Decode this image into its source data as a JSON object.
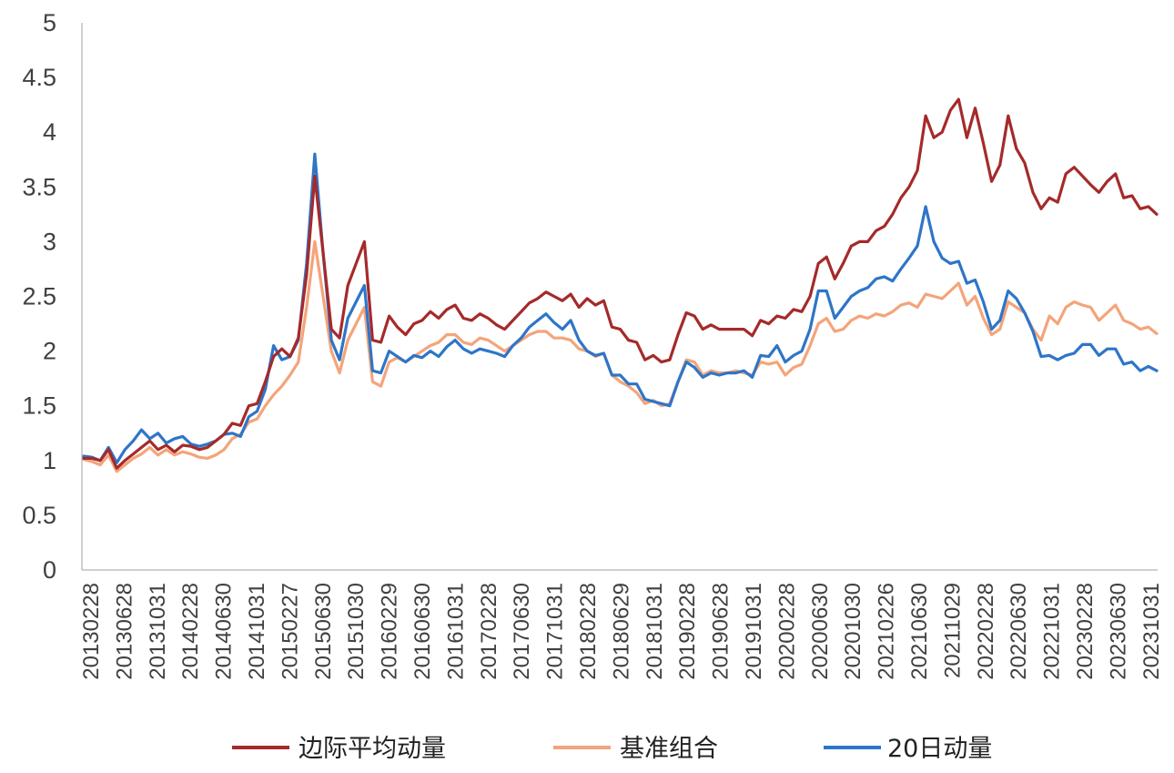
{
  "chart_data": {
    "type": "line",
    "title": "",
    "xlabel": "",
    "ylabel": "",
    "ylim": [
      0,
      5
    ],
    "y_ticks": [
      "0",
      "0.5",
      "1",
      "1.5",
      "2",
      "2.5",
      "3",
      "3.5",
      "4",
      "4.5",
      "5"
    ],
    "x_tick_labels": [
      "20130228",
      "20130628",
      "20131031",
      "20140228",
      "20140630",
      "20141031",
      "20150227",
      "20150630",
      "20151030",
      "20160229",
      "20160630",
      "20161031",
      "20170228",
      "20170630",
      "20171031",
      "20180228",
      "20180629",
      "20181031",
      "20190228",
      "20190628",
      "20191031",
      "20200228",
      "20200630",
      "20201030",
      "20210226",
      "20210630",
      "20211029",
      "20220228",
      "20220630",
      "20221031",
      "20230228",
      "20230630",
      "20231031"
    ],
    "grid": false,
    "legend_position": "bottom",
    "series": [
      {
        "name": "边际平均动量",
        "color": "#A52A2A",
        "values": [
          1.02,
          1.02,
          1.0,
          1.1,
          0.93,
          1.0,
          1.06,
          1.12,
          1.18,
          1.1,
          1.14,
          1.08,
          1.14,
          1.13,
          1.1,
          1.12,
          1.18,
          1.24,
          1.34,
          1.32,
          1.5,
          1.52,
          1.72,
          1.95,
          2.02,
          1.95,
          2.12,
          2.7,
          3.6,
          2.9,
          2.2,
          2.12,
          2.6,
          2.8,
          3.0,
          2.1,
          2.08,
          2.32,
          2.22,
          2.15,
          2.25,
          2.28,
          2.36,
          2.3,
          2.38,
          2.42,
          2.3,
          2.28,
          2.34,
          2.3,
          2.24,
          2.2,
          2.28,
          2.36,
          2.44,
          2.48,
          2.54,
          2.5,
          2.46,
          2.52,
          2.4,
          2.48,
          2.42,
          2.46,
          2.22,
          2.2,
          2.1,
          2.08,
          1.92,
          1.96,
          1.9,
          1.92,
          2.15,
          2.35,
          2.32,
          2.2,
          2.24,
          2.2,
          2.2,
          2.2,
          2.2,
          2.14,
          2.28,
          2.25,
          2.32,
          2.3,
          2.38,
          2.36,
          2.5,
          2.8,
          2.86,
          2.66,
          2.8,
          2.96,
          3.0,
          3.0,
          3.1,
          3.14,
          3.25,
          3.4,
          3.5,
          3.65,
          4.15,
          3.95,
          4.0,
          4.2,
          4.3,
          3.95,
          4.22,
          3.9,
          3.55,
          3.7,
          4.15,
          3.85,
          3.72,
          3.45,
          3.3,
          3.4,
          3.36,
          3.62,
          3.68,
          3.6,
          3.52,
          3.45,
          3.55,
          3.62,
          3.4,
          3.42,
          3.3,
          3.32,
          3.25
        ]
      },
      {
        "name": "基准组合",
        "color": "#F4A47A",
        "values": [
          1.01,
          0.99,
          0.96,
          1.05,
          0.9,
          0.96,
          1.02,
          1.06,
          1.12,
          1.05,
          1.1,
          1.05,
          1.08,
          1.06,
          1.03,
          1.02,
          1.05,
          1.1,
          1.2,
          1.24,
          1.35,
          1.38,
          1.5,
          1.6,
          1.68,
          1.78,
          1.9,
          2.4,
          3.0,
          2.5,
          2.0,
          1.8,
          2.1,
          2.25,
          2.4,
          1.72,
          1.68,
          1.9,
          1.94,
          1.9,
          1.95,
          2.0,
          2.05,
          2.08,
          2.15,
          2.15,
          2.08,
          2.06,
          2.12,
          2.1,
          2.05,
          2.0,
          2.05,
          2.1,
          2.15,
          2.18,
          2.18,
          2.12,
          2.12,
          2.1,
          2.02,
          2.0,
          1.95,
          1.98,
          1.78,
          1.72,
          1.68,
          1.62,
          1.52,
          1.55,
          1.5,
          1.52,
          1.72,
          1.92,
          1.9,
          1.78,
          1.82,
          1.8,
          1.8,
          1.82,
          1.8,
          1.78,
          1.9,
          1.88,
          1.9,
          1.78,
          1.85,
          1.88,
          2.05,
          2.25,
          2.3,
          2.18,
          2.2,
          2.28,
          2.32,
          2.3,
          2.34,
          2.32,
          2.36,
          2.42,
          2.44,
          2.4,
          2.52,
          2.5,
          2.48,
          2.55,
          2.62,
          2.42,
          2.5,
          2.3,
          2.15,
          2.2,
          2.45,
          2.4,
          2.35,
          2.2,
          2.1,
          2.32,
          2.25,
          2.4,
          2.45,
          2.42,
          2.4,
          2.28,
          2.35,
          2.42,
          2.28,
          2.25,
          2.2,
          2.22,
          2.16
        ]
      },
      {
        "name": "20日动量",
        "color": "#2E75C8",
        "values": [
          1.04,
          1.03,
          1.0,
          1.12,
          0.98,
          1.1,
          1.18,
          1.28,
          1.2,
          1.25,
          1.16,
          1.2,
          1.22,
          1.15,
          1.13,
          1.15,
          1.18,
          1.24,
          1.25,
          1.22,
          1.4,
          1.45,
          1.65,
          2.05,
          1.92,
          1.95,
          2.1,
          2.8,
          3.8,
          2.9,
          2.1,
          1.92,
          2.3,
          2.45,
          2.6,
          1.82,
          1.8,
          2.0,
          1.95,
          1.9,
          1.96,
          1.94,
          2.0,
          1.95,
          2.04,
          2.1,
          2.02,
          1.98,
          2.02,
          2.0,
          1.98,
          1.95,
          2.05,
          2.12,
          2.22,
          2.28,
          2.34,
          2.26,
          2.2,
          2.28,
          2.1,
          2.0,
          1.96,
          1.98,
          1.78,
          1.78,
          1.7,
          1.7,
          1.56,
          1.54,
          1.52,
          1.5,
          1.72,
          1.9,
          1.85,
          1.76,
          1.8,
          1.78,
          1.8,
          1.8,
          1.82,
          1.76,
          1.96,
          1.95,
          2.05,
          1.9,
          1.96,
          2.0,
          2.2,
          2.55,
          2.55,
          2.3,
          2.4,
          2.5,
          2.55,
          2.58,
          2.66,
          2.68,
          2.64,
          2.75,
          2.85,
          2.96,
          3.32,
          3.0,
          2.85,
          2.8,
          2.82,
          2.62,
          2.65,
          2.45,
          2.2,
          2.28,
          2.55,
          2.48,
          2.35,
          2.18,
          1.95,
          1.96,
          1.92,
          1.96,
          1.98,
          2.06,
          2.06,
          1.96,
          2.02,
          2.02,
          1.88,
          1.9,
          1.82,
          1.86,
          1.82
        ]
      }
    ]
  }
}
